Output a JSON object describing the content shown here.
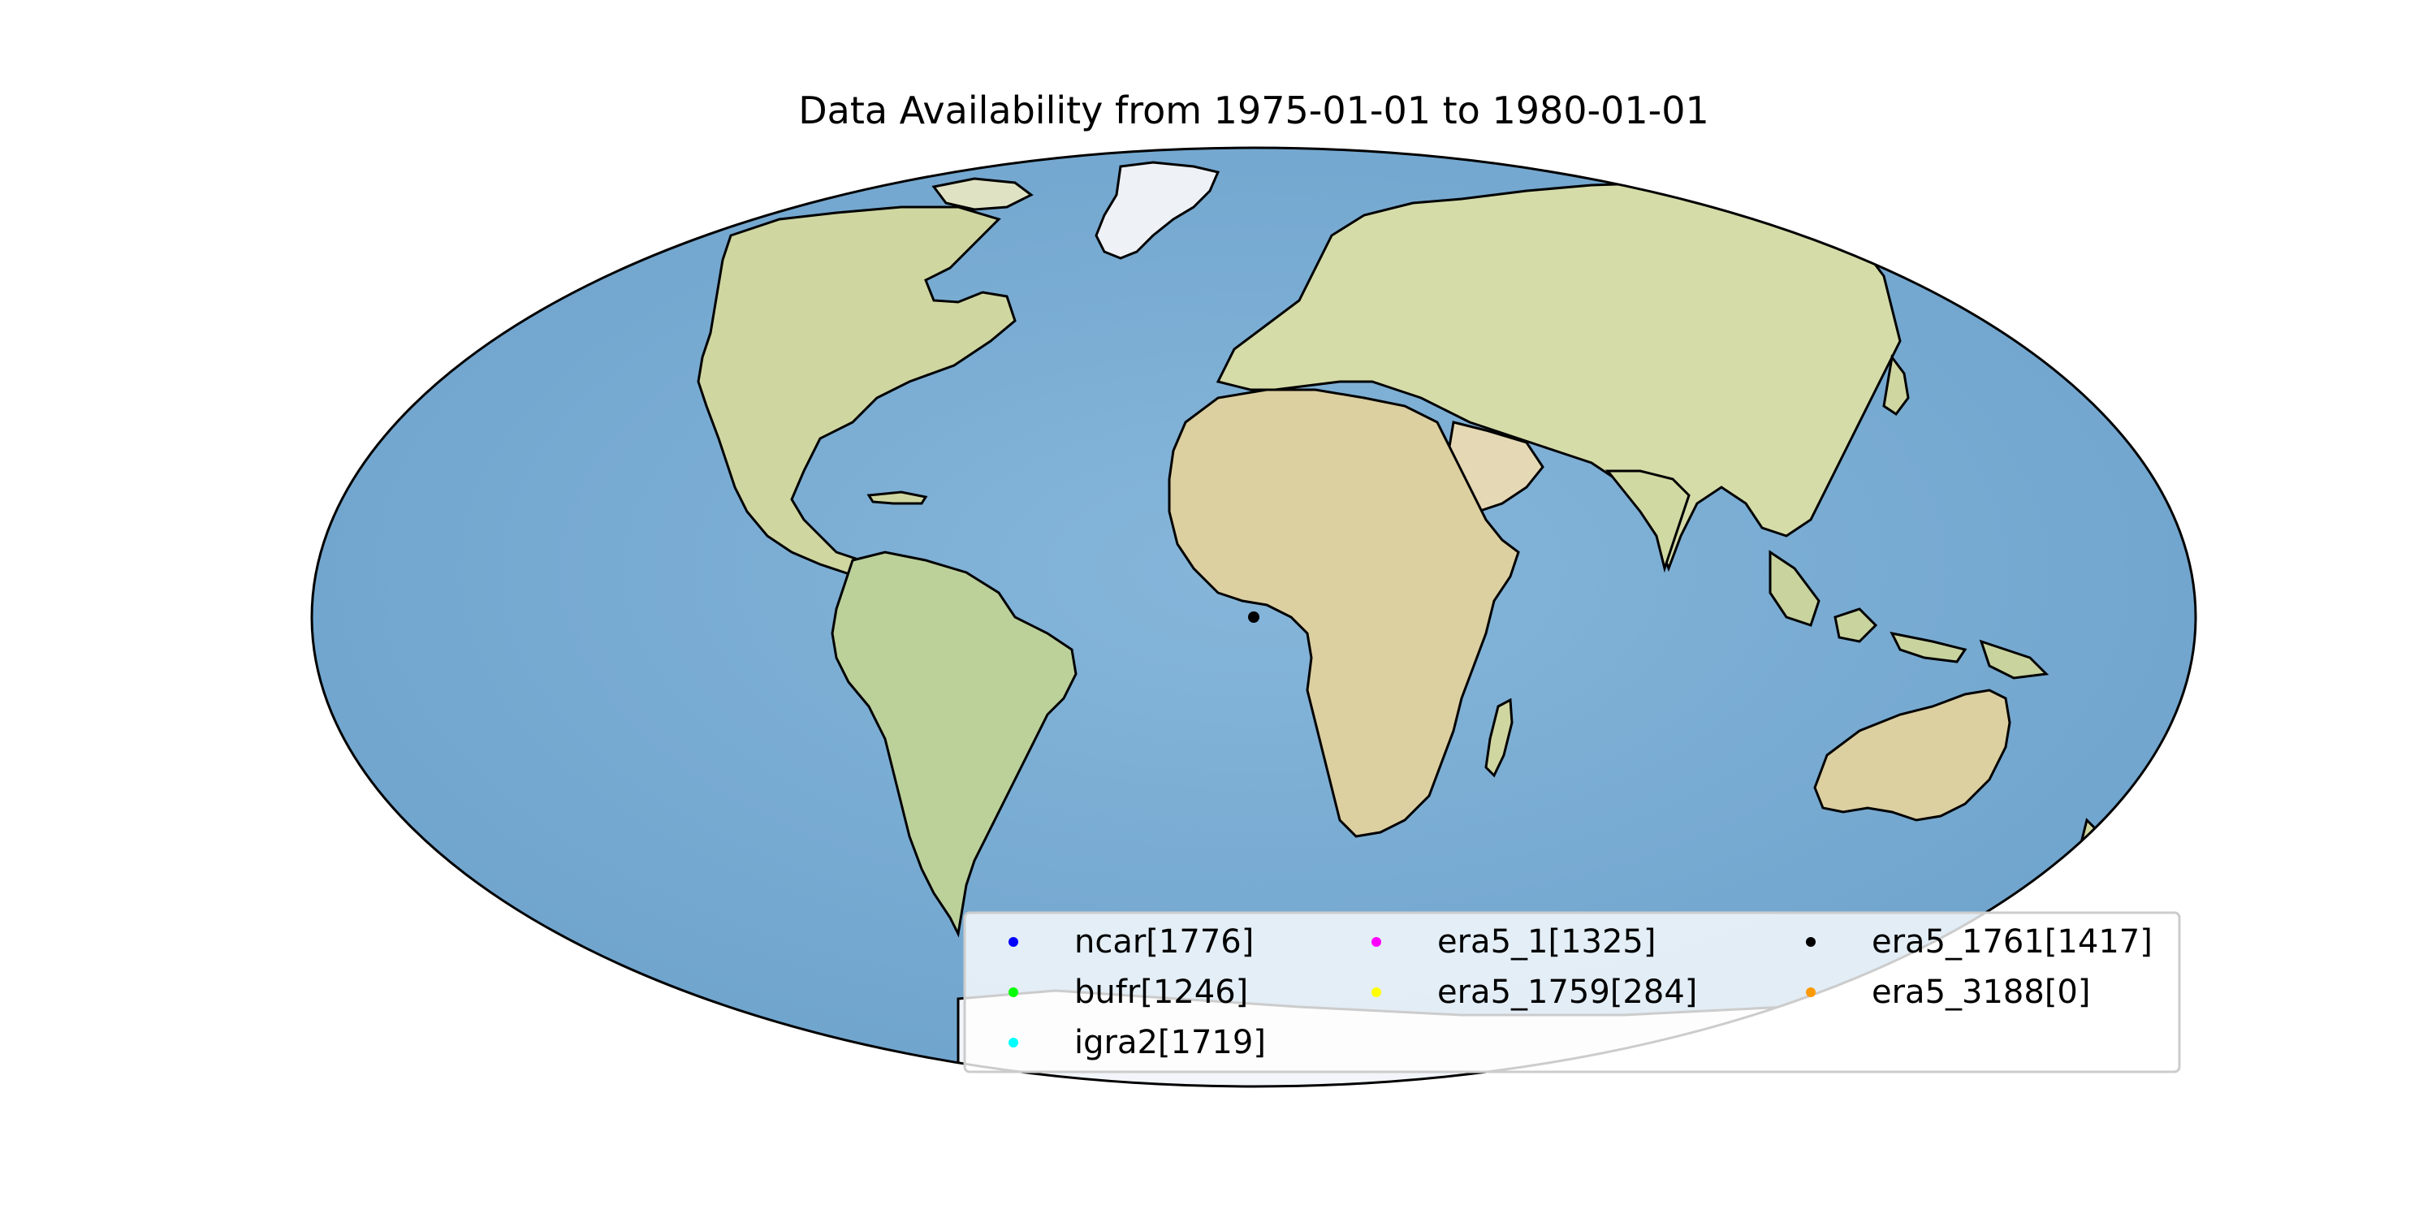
{
  "title": "Data Availability from 1975-01-01 to 1980-01-01",
  "colors": {
    "ocean": "#7fb0d6",
    "land": "#dfe2b0",
    "ice": "#f2f5f9",
    "coast": "#000000",
    "legend_bg": "#ffffff",
    "legend_border": "#cccccc"
  },
  "legend": {
    "items": [
      {
        "label": "ncar[1776]",
        "color": "#0000ff"
      },
      {
        "label": "bufr[1246]",
        "color": "#00ff00"
      },
      {
        "label": "igra2[1719]",
        "color": "#00ffff"
      },
      {
        "label": "era5_1[1325]",
        "color": "#ff00ff"
      },
      {
        "label": "era5_1759[284]",
        "color": "#ffff00"
      },
      {
        "label": "era5_1761[1417]",
        "color": "#000000"
      },
      {
        "label": "era5_3188[0]",
        "color": "#ff9900"
      }
    ]
  },
  "stations": [
    {
      "dataset": "era5_1761",
      "lon": 0,
      "lat": 0,
      "color": "#000000"
    }
  ]
}
